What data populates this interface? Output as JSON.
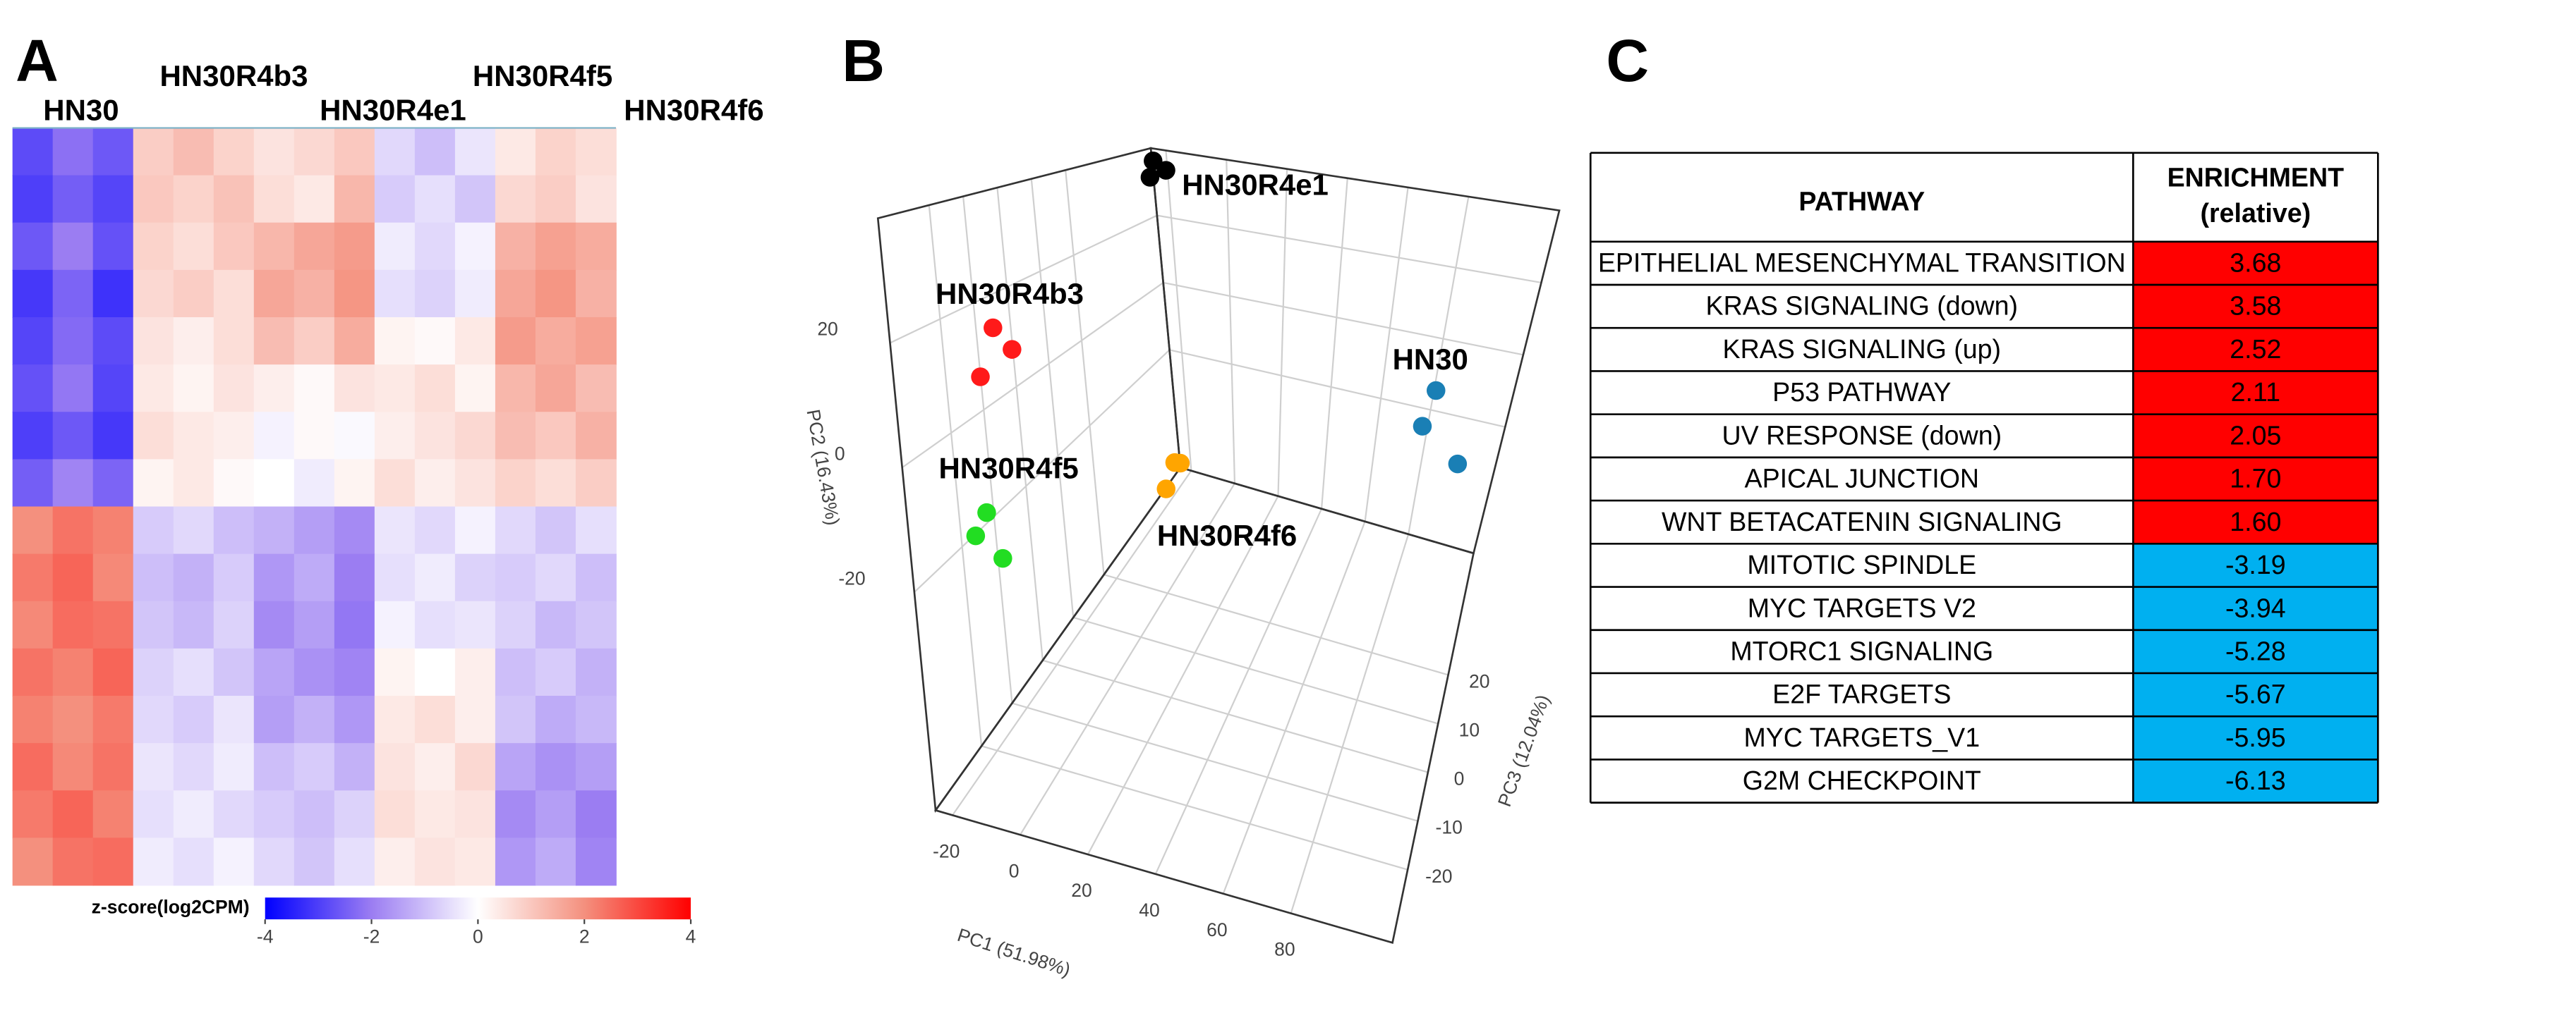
{
  "panel_labels": [
    "A",
    "B",
    "C"
  ],
  "chart_data": [
    {
      "type": "heatmap",
      "categories": [
        "HN30",
        "HN30R4b3",
        "HN30R4e1",
        "HN30R4f5",
        "HN30R4f6"
      ],
      "values": [
        [
          -2.8,
          -2.2,
          -2.6,
          0.9,
          1.2,
          0.8,
          0.5,
          0.7,
          1.0,
          -0.6,
          -1.0,
          -0.4,
          0.4,
          0.8,
          0.6
        ],
        [
          -3.0,
          -2.5,
          -2.9,
          1.0,
          0.8,
          1.1,
          0.6,
          0.4,
          1.3,
          -0.8,
          -0.5,
          -0.9,
          0.7,
          0.9,
          0.5
        ],
        [
          -2.6,
          -2.0,
          -2.7,
          0.8,
          0.6,
          1.0,
          1.3,
          1.6,
          1.8,
          -0.3,
          -0.6,
          -0.2,
          1.4,
          1.7,
          1.5
        ],
        [
          -3.1,
          -2.4,
          -3.2,
          0.7,
          0.9,
          0.6,
          1.6,
          1.4,
          1.9,
          -0.5,
          -0.7,
          -0.3,
          1.6,
          1.9,
          1.4
        ],
        [
          -2.9,
          -2.3,
          -2.8,
          0.5,
          0.3,
          0.6,
          1.2,
          0.9,
          1.5,
          0.2,
          0.1,
          0.4,
          1.8,
          1.5,
          1.7
        ],
        [
          -2.7,
          -2.1,
          -2.9,
          0.4,
          0.2,
          0.5,
          0.3,
          0.1,
          0.5,
          0.4,
          0.6,
          0.2,
          1.3,
          1.6,
          1.2
        ],
        [
          -3.0,
          -2.6,
          -3.1,
          0.6,
          0.4,
          0.3,
          -0.2,
          0.1,
          -0.1,
          0.3,
          0.5,
          0.7,
          1.2,
          1.0,
          1.4
        ],
        [
          -2.5,
          -1.9,
          -2.4,
          0.2,
          0.4,
          0.1,
          0.0,
          -0.3,
          0.2,
          0.6,
          0.3,
          0.5,
          0.8,
          0.6,
          0.9
        ],
        [
          2.0,
          2.4,
          2.2,
          -0.8,
          -0.6,
          -1.0,
          -1.2,
          -1.5,
          -1.8,
          -0.4,
          -0.6,
          -0.2,
          -0.6,
          -0.9,
          -0.5
        ],
        [
          2.3,
          2.6,
          2.1,
          -1.0,
          -1.2,
          -0.8,
          -1.6,
          -1.3,
          -2.0,
          -0.5,
          -0.3,
          -0.7,
          -0.8,
          -0.6,
          -1.0
        ],
        [
          2.1,
          2.5,
          2.4,
          -0.9,
          -1.1,
          -0.7,
          -1.8,
          -1.5,
          -2.1,
          -0.2,
          -0.5,
          -0.4,
          -0.7,
          -1.1,
          -0.9
        ],
        [
          2.4,
          2.2,
          2.6,
          -0.7,
          -0.5,
          -0.9,
          -1.4,
          -1.7,
          -1.9,
          0.2,
          0.0,
          0.3,
          -1.0,
          -0.8,
          -1.2
        ],
        [
          2.2,
          2.0,
          2.3,
          -0.6,
          -0.8,
          -0.4,
          -1.5,
          -1.2,
          -1.6,
          0.4,
          0.6,
          0.3,
          -0.9,
          -1.3,
          -1.1
        ],
        [
          2.5,
          2.1,
          2.4,
          -0.4,
          -0.6,
          -0.3,
          -1.0,
          -0.8,
          -1.2,
          0.5,
          0.3,
          0.7,
          -1.4,
          -1.7,
          -1.5
        ],
        [
          2.3,
          2.6,
          2.2,
          -0.5,
          -0.3,
          -0.6,
          -0.8,
          -1.0,
          -0.7,
          0.6,
          0.4,
          0.5,
          -1.8,
          -1.5,
          -2.0
        ],
        [
          2.0,
          2.4,
          2.5,
          -0.3,
          -0.5,
          -0.2,
          -0.6,
          -0.9,
          -0.5,
          0.3,
          0.5,
          0.4,
          -1.6,
          -1.3,
          -1.9
        ]
      ],
      "zlim": [
        -4,
        4
      ],
      "colorscale": [
        [
          -4,
          "#0000ff"
        ],
        [
          -2,
          "#9b7df2"
        ],
        [
          0,
          "#ffffff"
        ],
        [
          2,
          "#f4907e"
        ],
        [
          4,
          "#ff0000"
        ]
      ],
      "colorbar": {
        "title": "z-score(log2CPM)",
        "ticks": [
          -4,
          -2,
          0,
          2,
          4
        ]
      }
    },
    {
      "type": "scatter3d",
      "xlabel": "PC1 (51.98%)",
      "ylabel": "PC2 (16.43%)",
      "zlabel": "PC3 (12.04%)",
      "xlim": [
        -25,
        110
      ],
      "ylim": [
        -55,
        40
      ],
      "zlim": [
        -35,
        45
      ],
      "xticks": [
        -20,
        0,
        20,
        40,
        60,
        80
      ],
      "yticks": [
        -20,
        0,
        20
      ],
      "zticks": [
        -20,
        -10,
        0,
        10,
        20
      ],
      "grid": true,
      "series": [
        {
          "name": "HN30R4e1",
          "color": "#000000",
          "x": [
            -15.5,
            -11.5,
            -16.9
          ],
          "y": [
            40,
            38.1,
            35.3
          ],
          "z": [
            37,
            37,
            37
          ]
        },
        {
          "name": "HN30R4b3",
          "color": "#ff1a1a",
          "x": [
            -18.9,
            -13.8,
            -24
          ],
          "y": [
            17.2,
            14.4,
            6.8
          ],
          "z": [
            -11,
            -11,
            -11
          ]
        },
        {
          "name": "HN30",
          "color": "#1a7fb5",
          "x": [
            82,
            80,
            95
          ],
          "y": [
            -11,
            -19,
            -31.5
          ],
          "z": [
            42,
            40,
            44
          ]
        },
        {
          "name": "HN30R4f5",
          "color": "#22dd22",
          "x": [
            -17.6,
            -21.6,
            -13.9
          ],
          "y": [
            -12.9,
            -17.9,
            -20.3
          ],
          "z": [
            -19,
            -19,
            -19
          ]
        },
        {
          "name": "HN30R4f6",
          "color": "#ffa500",
          "x": [
            -23.6,
            -22.3,
            -23.6
          ],
          "y": [
            -50.3,
            -51.2,
            -54
          ],
          "z": [
            42.6,
            43.4,
            39.4
          ]
        }
      ]
    }
  ],
  "table": {
    "header": {
      "pathway": "PATHWAY",
      "enrichment": [
        "ENRICHMENT",
        "(relative)"
      ]
    },
    "colors": {
      "positive": "#ff0000",
      "negative": "#00b0f0"
    },
    "rows": [
      [
        "EPITHELIAL MESENCHYMAL TRANSITION",
        "3.68"
      ],
      [
        "KRAS SIGNALING (down)",
        "3.58"
      ],
      [
        "KRAS SIGNALING (up)",
        "2.52"
      ],
      [
        "P53 PATHWAY",
        "2.11"
      ],
      [
        "UV RESPONSE (down)",
        "2.05"
      ],
      [
        "APICAL JUNCTION",
        "1.70"
      ],
      [
        "WNT BETACATENIN SIGNALING",
        "1.60"
      ],
      [
        "MITOTIC SPINDLE",
        "-3.19"
      ],
      [
        "MYC TARGETS V2",
        "-3.94"
      ],
      [
        "MTORC1 SIGNALING",
        "-5.28"
      ],
      [
        "E2F TARGETS",
        "-5.67"
      ],
      [
        "MYC TARGETS_V1",
        "-5.95"
      ],
      [
        "G2M CHECKPOINT",
        "-6.13"
      ]
    ]
  }
}
